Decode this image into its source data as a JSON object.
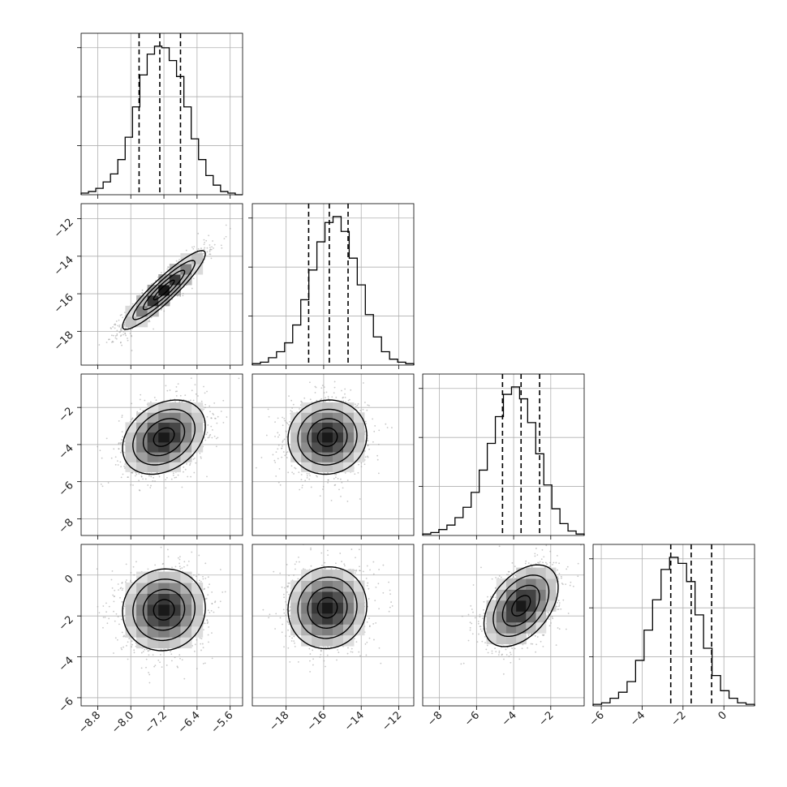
{
  "chart_data": {
    "type": "corner",
    "parameters": 4,
    "grid": true,
    "axes": [
      {
        "index": 0,
        "range": [
          -9.2,
          -5.3
        ],
        "ticks": [
          -8.8,
          -8.0,
          -7.2,
          -6.4,
          -5.6
        ],
        "tick_labels": [
          "−8.8",
          "−8.0",
          "−7.2",
          "−6.4",
          "−5.6"
        ]
      },
      {
        "index": 1,
        "range": [
          -19.8,
          -11.2
        ],
        "ticks": [
          -18,
          -16,
          -14,
          -12
        ],
        "tick_labels": [
          "−18",
          "−16",
          "−14",
          "−12"
        ]
      },
      {
        "index": 2,
        "range": [
          -8.9,
          -0.2
        ],
        "ticks": [
          -8,
          -6,
          -4,
          -2
        ],
        "tick_labels": [
          "−8",
          "−6",
          "−4",
          "−2"
        ]
      },
      {
        "index": 3,
        "range": [
          -6.4,
          1.5
        ],
        "ticks": [
          -6,
          -4,
          -2,
          0
        ],
        "tick_labels": [
          "−6",
          "−4",
          "−2",
          "0"
        ]
      }
    ],
    "marginals": [
      {
        "param": 0,
        "quantiles": [
          -7.8,
          -7.3,
          -6.8
        ],
        "counts": [
          1,
          2,
          4,
          8,
          13,
          22,
          36,
          55,
          75,
          88,
          93,
          92,
          84,
          74,
          55,
          35,
          22,
          12,
          6,
          2,
          1,
          0
        ]
      },
      {
        "param": 1,
        "quantiles": [
          -16.8,
          -15.7,
          -14.7
        ],
        "counts": [
          1,
          2,
          5,
          9,
          15,
          27,
          44,
          64,
          83,
          96,
          100,
          90,
          72,
          54,
          34,
          19,
          9,
          4,
          2,
          1
        ]
      },
      {
        "param": 2,
        "quantiles": [
          -4.6,
          -3.6,
          -2.6
        ],
        "counts": [
          1,
          2,
          4,
          7,
          12,
          19,
          29,
          44,
          62,
          80,
          95,
          100,
          92,
          76,
          55,
          34,
          18,
          8,
          3,
          1
        ]
      },
      {
        "param": 3,
        "quantiles": [
          -2.6,
          -1.6,
          -0.6
        ],
        "counts": [
          1,
          2,
          5,
          9,
          16,
          30,
          50,
          70,
          90,
          98,
          94,
          82,
          60,
          38,
          20,
          10,
          5,
          2,
          1
        ]
      }
    ],
    "joint": [
      {
        "x": 0,
        "y": 1,
        "center": [
          -7.2,
          -15.8
        ],
        "correlation": 0.92
      },
      {
        "x": 0,
        "y": 2,
        "center": [
          -7.2,
          -3.6
        ],
        "correlation": 0.3
      },
      {
        "x": 1,
        "y": 2,
        "center": [
          -15.8,
          -3.6
        ],
        "correlation": 0.05
      },
      {
        "x": 0,
        "y": 3,
        "center": [
          -7.2,
          -1.7
        ],
        "correlation": 0.05
      },
      {
        "x": 1,
        "y": 3,
        "center": [
          -15.8,
          -1.6
        ],
        "correlation": 0.05
      },
      {
        "x": 2,
        "y": 3,
        "center": [
          -3.6,
          -1.5
        ],
        "correlation": 0.45
      }
    ],
    "contour_levels_sigma": [
      0.5,
      1.0,
      1.5,
      2.0
    ],
    "colors": {
      "line": "#000000",
      "grid": "#b0b0b0",
      "points": "#9a9a9a"
    }
  }
}
